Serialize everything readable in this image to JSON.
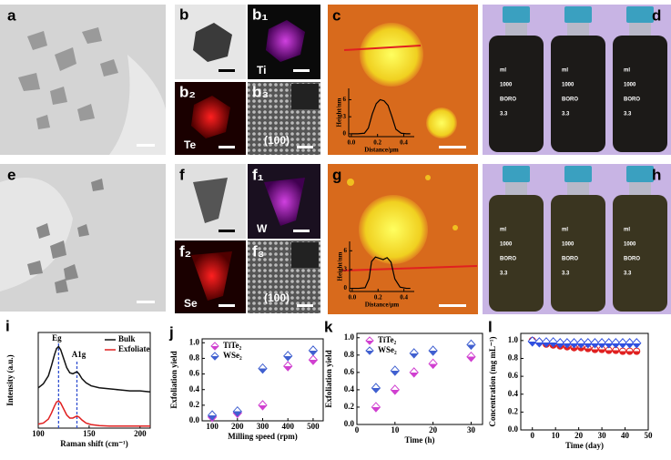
{
  "panels": {
    "a": "a",
    "b": "b",
    "b1": "b₁",
    "b1_element": "Ti",
    "b2": "b₂",
    "b2_element": "Te",
    "b3": "b₃",
    "b3_plane": "(100)",
    "c": "c",
    "d": "d",
    "e": "e",
    "f": "f",
    "f1": "f₁",
    "f1_element": "W",
    "f2": "f₂",
    "f2_element": "Se",
    "f3": "f₃",
    "f3_plane": "(100)",
    "g": "g",
    "h": "h",
    "bottle_texts": [
      "ml",
      "1000",
      "BORO",
      "3.3"
    ]
  },
  "chart_data": [
    {
      "type": "line",
      "label": "i",
      "xlabel": "Raman shift (cm⁻¹)",
      "ylabel": "Intensity (a.u.)",
      "x": [
        100,
        105,
        110,
        113,
        116,
        118,
        120,
        122,
        125,
        128,
        131,
        134,
        136,
        138,
        140,
        143,
        147,
        152,
        160,
        170,
        180,
        190,
        200,
        210
      ],
      "xlim": [
        100,
        210
      ],
      "xticks": [
        100,
        150,
        200
      ],
      "ylim": [
        0,
        9.5
      ],
      "legend": "upper right",
      "series": [
        {
          "name": "Bulk",
          "color": "#111111",
          "values": [
            4.0,
            4.4,
            5.2,
            6.2,
            7.3,
            7.9,
            8.1,
            7.8,
            6.9,
            6.0,
            5.5,
            5.4,
            5.5,
            5.6,
            5.4,
            4.9,
            4.5,
            4.2,
            4.0,
            3.9,
            3.8,
            3.7,
            3.7,
            3.6
          ]
        },
        {
          "name": "Exfoliate",
          "color": "#e02020",
          "values": [
            0.4,
            0.5,
            0.9,
            1.5,
            2.2,
            2.6,
            2.7,
            2.5,
            1.9,
            1.3,
            1.0,
            1.0,
            1.1,
            1.2,
            1.1,
            0.8,
            0.5,
            0.35,
            0.25,
            0.2,
            0.2,
            0.2,
            0.2,
            0.2
          ]
        }
      ],
      "annotations": [
        {
          "label": "Eg",
          "x": 120
        },
        {
          "label": "A1g",
          "x": 138
        }
      ],
      "annotation_color": "#3050d0"
    },
    {
      "type": "scatter",
      "label": "j",
      "xlabel": "Milling speed (rpm)",
      "ylabel": "Exfoliation yield",
      "x": [
        100,
        200,
        300,
        400,
        500
      ],
      "xlim": [
        60,
        540
      ],
      "xticks": [
        100,
        200,
        300,
        400,
        500
      ],
      "ylim": [
        0,
        1.05
      ],
      "yticks": [
        {
          "value": 0,
          "label": "0.0"
        },
        0.2,
        0.4,
        0.6,
        0.8,
        {
          "value": 1,
          "label": "1.0"
        }
      ],
      "legend": "upper left",
      "series": [
        {
          "name": "TiTe₂",
          "color": "#d040d0",
          "marker": "diamond",
          "values": [
            0.05,
            0.1,
            0.2,
            0.7,
            0.78
          ]
        },
        {
          "name": "WSe₂",
          "color": "#4060d0",
          "marker": "diamond",
          "values": [
            0.07,
            0.12,
            0.67,
            0.83,
            0.9
          ]
        }
      ]
    },
    {
      "type": "scatter",
      "label": "k",
      "xlabel": "Time (h)",
      "ylabel": "Exfoliation yield",
      "x": [
        5,
        10,
        15,
        20,
        30
      ],
      "xlim": [
        0,
        33
      ],
      "xticks": [
        0,
        10,
        20,
        30
      ],
      "ylim": [
        0,
        1.05
      ],
      "yticks": [
        {
          "value": 0,
          "label": "0.0"
        },
        0.2,
        0.4,
        0.6,
        0.8,
        {
          "value": 1,
          "label": "1.0"
        }
      ],
      "legend": "upper left",
      "series": [
        {
          "name": "TiTe₂",
          "color": "#d040d0",
          "marker": "diamond",
          "values": [
            0.2,
            0.4,
            0.6,
            0.7,
            0.78
          ]
        },
        {
          "name": "WSe₂",
          "color": "#4060d0",
          "marker": "diamond",
          "values": [
            0.42,
            0.62,
            0.82,
            0.85,
            0.92
          ]
        }
      ]
    },
    {
      "type": "scatter",
      "label": "l",
      "xlabel": "Time (day)",
      "ylabel": "Concentration (mg mL⁻¹)",
      "x": [
        0,
        3,
        6,
        9,
        12,
        15,
        18,
        21,
        24,
        27,
        30,
        33,
        36,
        39,
        42,
        45
      ],
      "xlim": [
        -5,
        50
      ],
      "xticks": [
        0,
        10,
        20,
        30,
        40,
        50
      ],
      "ylim": [
        0,
        1.08
      ],
      "yticks": [
        {
          "value": 0,
          "label": "0.0"
        },
        0.2,
        0.4,
        0.6,
        0.8,
        {
          "value": 1,
          "label": "1.0"
        }
      ],
      "series": [
        {
          "color": "#e02020",
          "marker": "circle",
          "values": [
            1.0,
            0.98,
            0.96,
            0.95,
            0.94,
            0.93,
            0.92,
            0.92,
            0.91,
            0.9,
            0.9,
            0.89,
            0.89,
            0.88,
            0.88,
            0.88
          ]
        },
        {
          "color": "#3050e0",
          "marker": "diamond",
          "values": [
            0.99,
            0.98,
            0.98,
            0.98,
            0.97,
            0.97,
            0.97,
            0.97,
            0.97,
            0.97,
            0.97,
            0.97,
            0.97,
            0.97,
            0.97,
            0.97
          ]
        }
      ]
    },
    {
      "type": "line",
      "xlabel": "Distance/μm",
      "ylabel": "Height/nm",
      "x": [
        0,
        0.05,
        0.1,
        0.13,
        0.16,
        0.19,
        0.22,
        0.25,
        0.28,
        0.31,
        0.34,
        0.38,
        0.42,
        0.45
      ],
      "xlim": [
        -0.02,
        0.48
      ],
      "xticks": [
        {
          "value": 0,
          "label": "0.0"
        },
        0.2,
        0.4
      ],
      "ylim": [
        -0.5,
        8
      ],
      "yticks": [
        0,
        3,
        6
      ],
      "series": [
        {
          "color": "#000000",
          "values": [
            0,
            0,
            0.1,
            1,
            3.5,
            5.3,
            6,
            5.8,
            5,
            3,
            0.8,
            0.1,
            0,
            0
          ]
        }
      ]
    },
    {
      "type": "line",
      "xlabel": "Distance/μm",
      "ylabel": "Height/nm",
      "x": [
        0,
        0.05,
        0.1,
        0.13,
        0.15,
        0.18,
        0.21,
        0.24,
        0.27,
        0.3,
        0.33,
        0.37,
        0.42,
        0.45
      ],
      "xlim": [
        -0.02,
        0.48
      ],
      "xticks": [
        {
          "value": 0,
          "label": "0.0"
        },
        0.2,
        0.4
      ],
      "ylim": [
        -0.5,
        7.5
      ],
      "yticks": [
        0,
        3,
        6
      ],
      "series": [
        {
          "color": "#000000",
          "values": [
            0,
            0,
            0.1,
            1.5,
            4.3,
            5.0,
            4.8,
            4.6,
            4.9,
            4.2,
            1.5,
            0.2,
            0,
            0
          ]
        }
      ]
    }
  ]
}
